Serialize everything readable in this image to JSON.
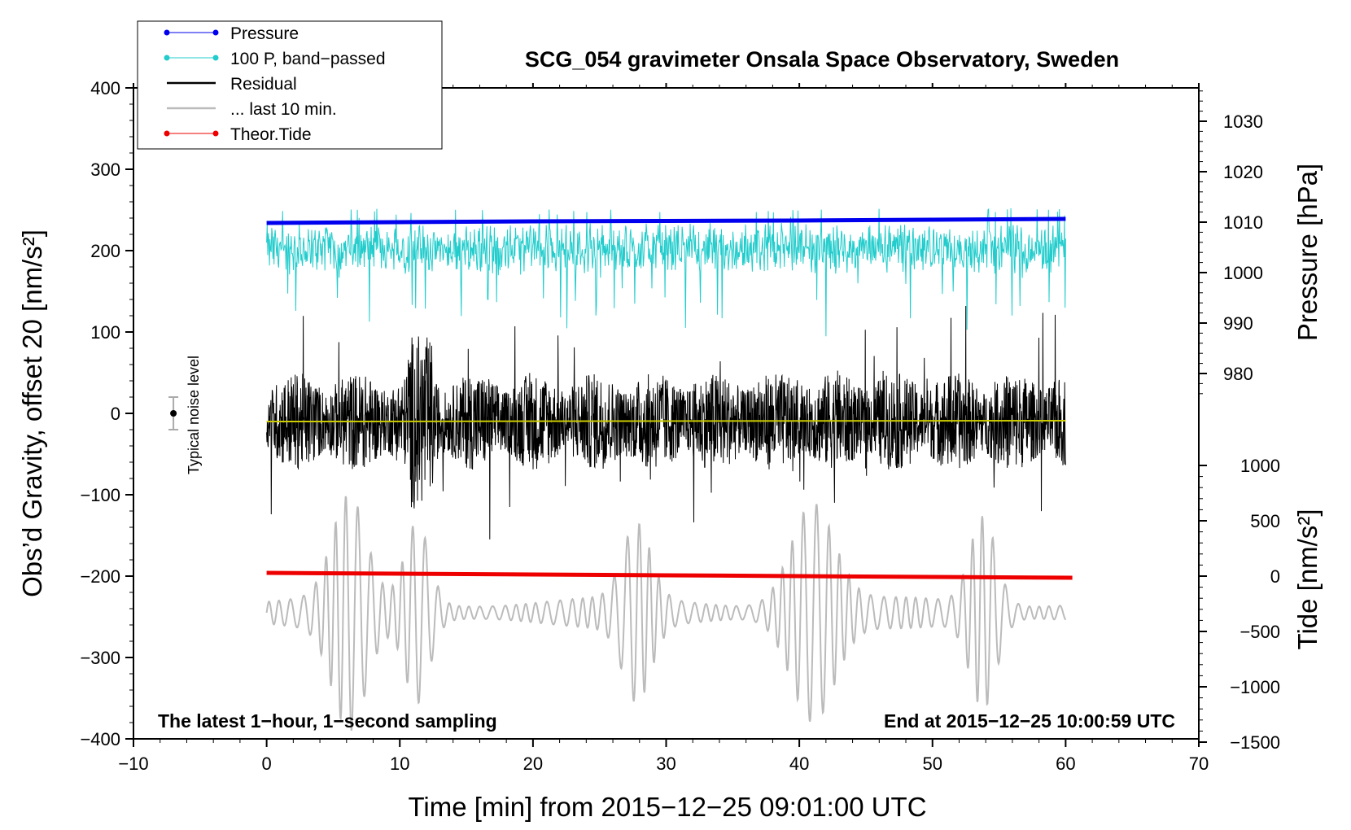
{
  "chart_data": {
    "type": "line",
    "title": "SCG_054 gravimeter Onsala Space Observatory, Sweden",
    "xlabel": "Time [min] from 2015−12−25 09:01:00 UTC",
    "ylabel_left": "Obs’d Gravity, offset 20 [nm/s²]",
    "ylabel_right_pressure": "Pressure [hPa]",
    "ylabel_right_tide": "Tide [nm/s²]",
    "xlim": [
      -10,
      70
    ],
    "ylim_left": [
      -400,
      400
    ],
    "x_ticks": [
      "−10",
      "0",
      "10",
      "20",
      "30",
      "40",
      "50",
      "60",
      "70"
    ],
    "y_ticks_left": [
      "400",
      "300",
      "200",
      "100",
      "0",
      "−100",
      "−200",
      "−300",
      "−400"
    ],
    "pressure_ticks": [
      "1030",
      "1020",
      "1010",
      "1000",
      "990",
      "980"
    ],
    "tide_ticks": [
      "1000",
      "500",
      "0",
      "−500",
      "−1000",
      "−1500"
    ],
    "pressure_scale": {
      "left_value_at_1010hPa": 235,
      "left_units_per_hPa": 6.2
    },
    "tide_scale": {
      "left_value_at_0": -200,
      "left_units_per_1000": 136
    },
    "legend": [
      {
        "label": "Pressure",
        "color": "#0000ee",
        "marker": "dot"
      },
      {
        "label": "100 P, band−passed",
        "color": "#22cccc",
        "marker": "dot"
      },
      {
        "label": "Residual",
        "color": "#000000",
        "marker": "none"
      },
      {
        "label": "... last 10 min.",
        "color": "#bbbbbb",
        "marker": "none"
      },
      {
        "label": "Theor.Tide",
        "color": "#ee0000",
        "marker": "dot"
      }
    ],
    "annotation_left": "The latest 1−hour, 1−second sampling",
    "annotation_right": "End at 2015−12−25 10:00:59 UTC",
    "noise_label": "Typical noise level",
    "noise_bar": {
      "x": -7,
      "y": 0,
      "err": 20
    },
    "series": [
      {
        "name": "Pressure",
        "color": "#0000ee",
        "x": [
          0,
          10,
          20,
          30,
          40,
          50,
          60
        ],
        "y": [
          234,
          235,
          236,
          236.5,
          237,
          238,
          239
        ]
      },
      {
        "name": "100 P, band−passed",
        "color": "#22cccc",
        "x_range": [
          0,
          60
        ],
        "baseline": 200,
        "amplitude": 30
      },
      {
        "name": "Residual",
        "color": "#000000",
        "x_range": [
          0,
          60
        ],
        "baseline": -10,
        "amplitude": 60
      },
      {
        "name": "Residual mean",
        "color": "#cccc00",
        "x": [
          0,
          60
        ],
        "y": [
          -10,
          -9
        ]
      },
      {
        "name": "Theor.Tide",
        "color": "#ee0000",
        "x": [
          0,
          10,
          20,
          30,
          40,
          50,
          60.5
        ],
        "y": [
          -196,
          -197,
          -198,
          -199,
          -200,
          -201,
          -202
        ]
      },
      {
        "name": "... last 10 min.",
        "color": "#bbbbbb",
        "x_range": [
          0,
          60
        ],
        "baseline": -245,
        "amplitude": 70,
        "bursts": [
          {
            "center": 6.2,
            "width": 1.8,
            "amp": 3.3
          },
          {
            "center": 11.3,
            "width": 1.3,
            "amp": 2.6
          },
          {
            "center": 27.8,
            "width": 1.5,
            "amp": 2.4
          },
          {
            "center": 41,
            "width": 2.3,
            "amp": 3.2
          },
          {
            "center": 53.8,
            "width": 1.4,
            "amp": 2.8
          }
        ]
      }
    ]
  }
}
